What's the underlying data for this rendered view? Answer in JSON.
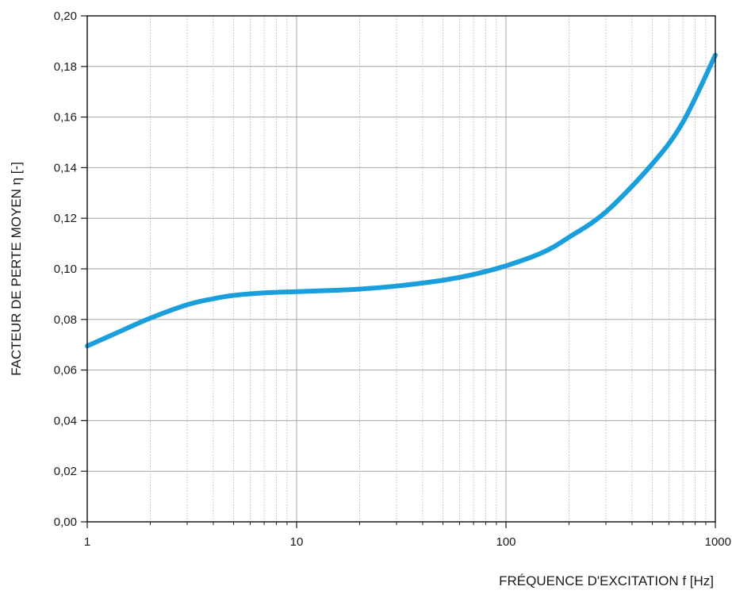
{
  "chart_data": {
    "type": "line",
    "xlabel": "FRÉQUENCE D'EXCITATION f [Hz]",
    "ylabel": "FACTEUR DE PERTE MOYEN η [-]",
    "x_scale": "log",
    "xlim": [
      1,
      1000
    ],
    "ylim": [
      0,
      0.2
    ],
    "grid": true,
    "x_ticks": [
      1,
      10,
      100,
      1000
    ],
    "x_tick_labels": [
      "1",
      "10",
      "100",
      "1000"
    ],
    "y_ticks": [
      0,
      0.02,
      0.04,
      0.06,
      0.08,
      0.1,
      0.12,
      0.14,
      0.16,
      0.18,
      0.2
    ],
    "y_tick_labels": [
      "0,00",
      "0,02",
      "0,04",
      "0,06",
      "0,08",
      "0,10",
      "0,12",
      "0,14",
      "0,16",
      "0,18",
      "0,20"
    ],
    "series": [
      {
        "color": "#1a9fdc",
        "x": [
          1,
          1.5,
          2,
          3,
          4,
          5,
          7,
          10,
          15,
          20,
          30,
          50,
          70,
          100,
          150,
          200,
          300,
          500,
          700,
          1000
        ],
        "y": [
          0.0695,
          0.076,
          0.0805,
          0.0858,
          0.0882,
          0.0895,
          0.0905,
          0.091,
          0.0915,
          0.092,
          0.0932,
          0.0955,
          0.0978,
          0.1012,
          0.1065,
          0.1125,
          0.1225,
          0.1415,
          0.158,
          0.1845
        ]
      }
    ]
  }
}
